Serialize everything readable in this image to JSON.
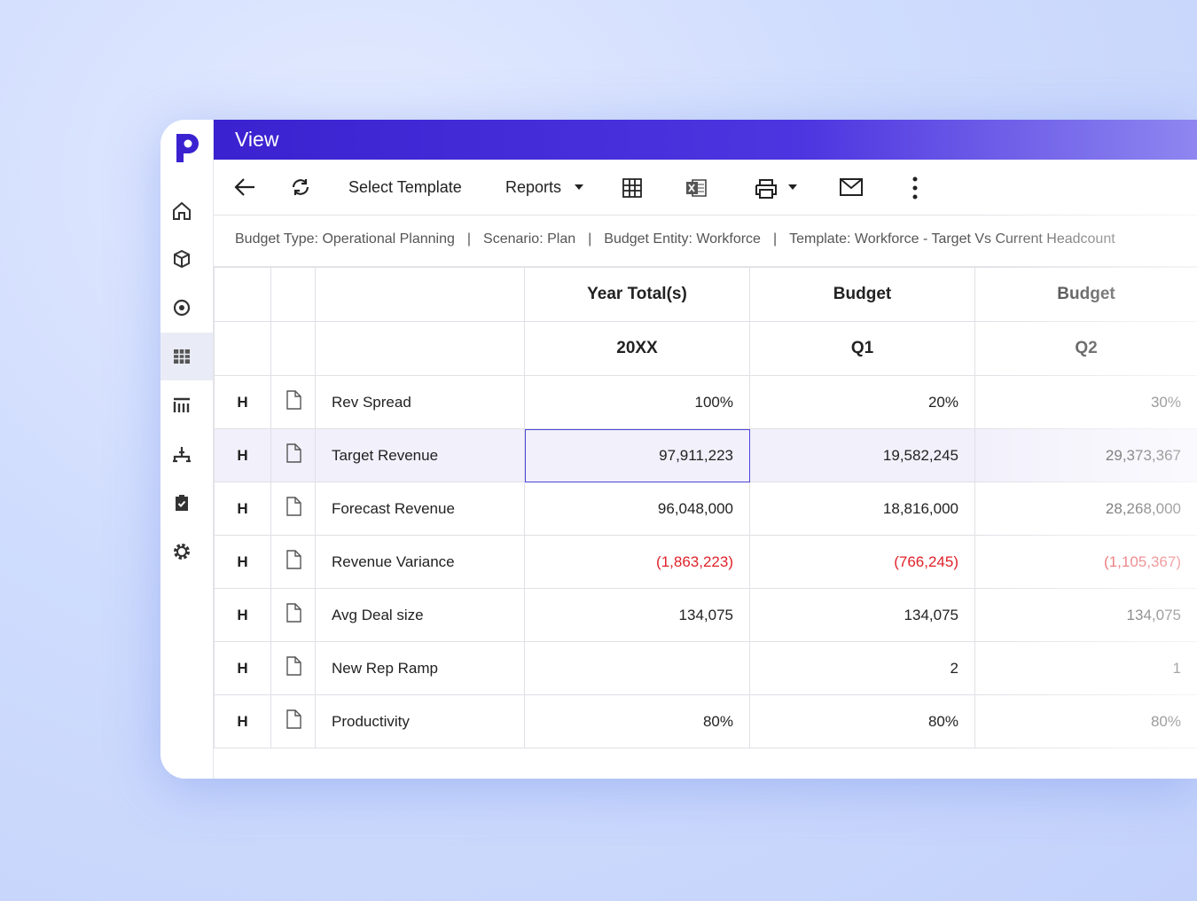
{
  "header": {
    "title": "View"
  },
  "toolbar": {
    "select_template": "Select Template",
    "reports": "Reports"
  },
  "info_bar": {
    "items": [
      "Budget Type: Operational Planning",
      "Scenario: Plan",
      "Budget Entity: Workforce",
      "Template: Workforce - Target Vs Current Headcount"
    ]
  },
  "table": {
    "header_rows": [
      [
        "Year Total(s)",
        "Budget",
        "Budget"
      ],
      [
        "20XX",
        "Q1",
        "Q2"
      ]
    ],
    "rows": [
      {
        "flag": "H",
        "label": "Rev Spread",
        "values": [
          "100%",
          "20%",
          "30%"
        ]
      },
      {
        "flag": "H",
        "label": "Target Revenue",
        "values": [
          "97,911,223",
          "19,582,245",
          "29,373,367"
        ]
      },
      {
        "flag": "H",
        "label": "Forecast Revenue",
        "values": [
          "96,048,000",
          "18,816,000",
          "28,268,000"
        ]
      },
      {
        "flag": "H",
        "label": "Revenue Variance",
        "values": [
          "(1,863,223)",
          "(766,245)",
          "(1,105,367)"
        ]
      },
      {
        "flag": "H",
        "label": "Avg Deal size",
        "values": [
          "134,075",
          "134,075",
          "134,075"
        ]
      },
      {
        "flag": "H",
        "label": "New Rep Ramp",
        "values": [
          null,
          "2",
          "1"
        ]
      },
      {
        "flag": "H",
        "label": "Productivity",
        "values": [
          "80%",
          "80%",
          "80%"
        ]
      }
    ]
  }
}
